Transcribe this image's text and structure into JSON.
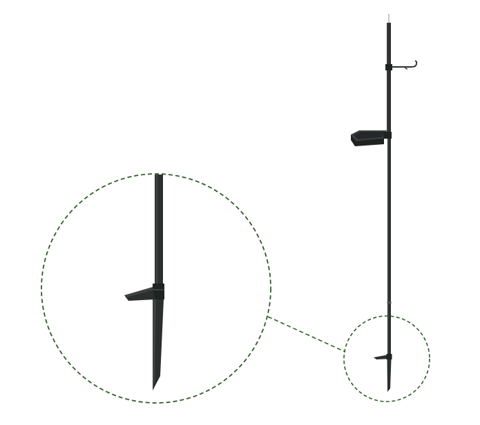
{
  "image": {
    "subject": "garden-feeder-pole",
    "background_color": "#ffffff",
    "colors": {
      "pole": "#2b2f2e",
      "pole_highlight": "#3d4341",
      "pole_shadow": "#1c1f1e",
      "detail_callout": "#2e5a2a"
    },
    "components": [
      "hanger-hook",
      "feeding-tray",
      "ground-stake",
      "detail-magnifier"
    ]
  }
}
